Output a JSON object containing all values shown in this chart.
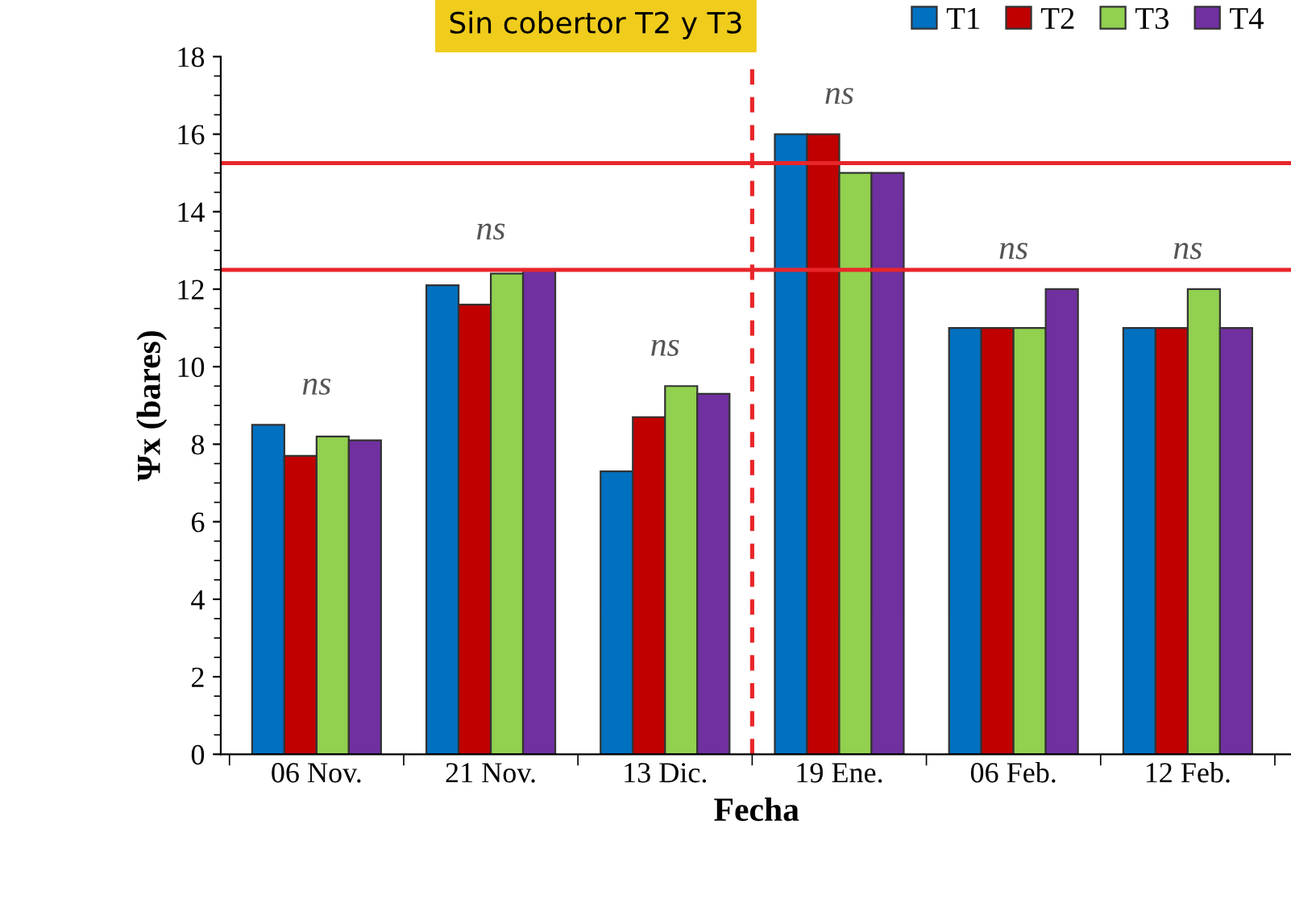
{
  "chart_data": {
    "type": "bar",
    "xlabel": "Fecha",
    "ylabel": "Ψx (bares)",
    "categories": [
      "06 Nov.",
      "21 Nov.",
      "13 Dic.",
      "19 Ene.",
      "06 Feb.",
      "12 Feb."
    ],
    "series": [
      {
        "name": "T1",
        "color": "#0070c0",
        "values": [
          8.5,
          12.1,
          7.3,
          16,
          11,
          11
        ]
      },
      {
        "name": "T2",
        "color": "#c00000",
        "values": [
          7.7,
          11.6,
          8.7,
          16,
          11,
          11
        ]
      },
      {
        "name": "T3",
        "color": "#92d050",
        "values": [
          8.2,
          12.4,
          9.5,
          15,
          11,
          12
        ]
      },
      {
        "name": "T4",
        "color": "#7030a0",
        "values": [
          8.1,
          12.5,
          9.3,
          15,
          12,
          11
        ]
      }
    ],
    "ylim": [
      0,
      18
    ],
    "yticks": [
      0,
      2,
      4,
      6,
      8,
      10,
      12,
      14,
      16,
      18
    ],
    "grid": false,
    "legend": "top right",
    "ref_lines": [
      {
        "axis": "y",
        "value": 15.25,
        "color": "#e8262a",
        "line_style": "solid"
      },
      {
        "axis": "y",
        "value": 12.5,
        "color": "#e8262a",
        "line_style": "solid"
      }
    ],
    "annotations": [
      "Sin cobertor T2 y T3",
      "ns",
      "ns",
      "ns",
      "ns",
      "ns",
      "ns"
    ]
  }
}
